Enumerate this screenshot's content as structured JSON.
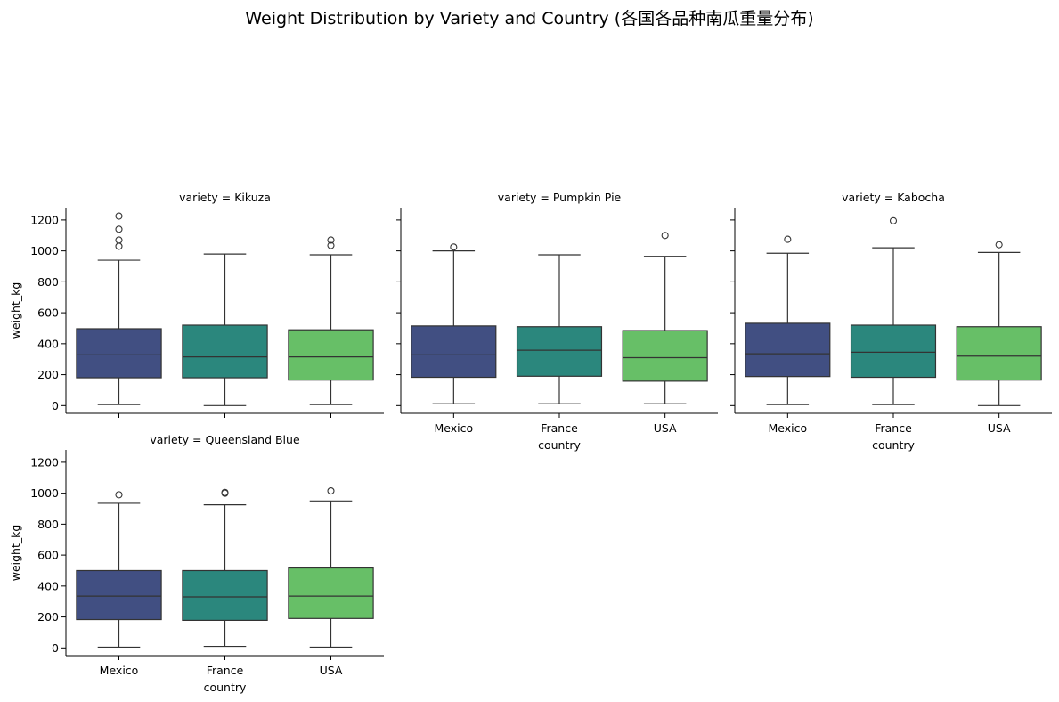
{
  "chart_data": {
    "type": "box",
    "title": "Weight Distribution by Variety and Country (各国各品种南瓜重量分布)",
    "xlabel": "country",
    "ylabel": "weight_kg",
    "ylim": [
      -50,
      1280
    ],
    "yticks": [
      0,
      200,
      400,
      600,
      800,
      1000,
      1200
    ],
    "categories": [
      "Mexico",
      "France",
      "USA"
    ],
    "colors": {
      "Mexico": "#414f82",
      "France": "#2b877d",
      "USA": "#67bf67"
    },
    "grid": false,
    "facets": [
      {
        "title": "variety = Kikuza",
        "boxes": [
          {
            "category": "Mexico",
            "whisker_low": 7,
            "q1": 180,
            "median": 328,
            "q3": 497,
            "whisker_high": 940,
            "outliers": [
              1030,
              1070,
              1140,
              1225
            ]
          },
          {
            "category": "France",
            "whisker_low": 0,
            "q1": 180,
            "median": 315,
            "q3": 520,
            "whisker_high": 980,
            "outliers": []
          },
          {
            "category": "USA",
            "whisker_low": 7,
            "q1": 165,
            "median": 315,
            "q3": 490,
            "whisker_high": 975,
            "outliers": [
              1035,
              1070
            ]
          }
        ]
      },
      {
        "title": "variety = Pumpkin Pie",
        "boxes": [
          {
            "category": "Mexico",
            "whisker_low": 12,
            "q1": 183,
            "median": 328,
            "q3": 515,
            "whisker_high": 1000,
            "outliers": [
              1025
            ]
          },
          {
            "category": "France",
            "whisker_low": 12,
            "q1": 190,
            "median": 358,
            "q3": 510,
            "whisker_high": 975,
            "outliers": []
          },
          {
            "category": "USA",
            "whisker_low": 12,
            "q1": 158,
            "median": 310,
            "q3": 485,
            "whisker_high": 965,
            "outliers": [
              1100
            ]
          }
        ]
      },
      {
        "title": "variety = Kabocha",
        "boxes": [
          {
            "category": "Mexico",
            "whisker_low": 7,
            "q1": 188,
            "median": 335,
            "q3": 532,
            "whisker_high": 985,
            "outliers": [
              1075
            ]
          },
          {
            "category": "France",
            "whisker_low": 7,
            "q1": 183,
            "median": 345,
            "q3": 520,
            "whisker_high": 1020,
            "outliers": [
              1195
            ]
          },
          {
            "category": "USA",
            "whisker_low": 0,
            "q1": 165,
            "median": 320,
            "q3": 510,
            "whisker_high": 990,
            "outliers": [
              1040
            ]
          }
        ]
      },
      {
        "title": "variety = Queensland Blue",
        "boxes": [
          {
            "category": "Mexico",
            "whisker_low": 5,
            "q1": 183,
            "median": 335,
            "q3": 500,
            "whisker_high": 935,
            "outliers": [
              990
            ]
          },
          {
            "category": "France",
            "whisker_low": 10,
            "q1": 178,
            "median": 330,
            "q3": 500,
            "whisker_high": 925,
            "outliers": [
              1000,
              1005
            ]
          },
          {
            "category": "USA",
            "whisker_low": 5,
            "q1": 190,
            "median": 335,
            "q3": 517,
            "whisker_high": 950,
            "outliers": [
              1015
            ]
          }
        ]
      }
    ]
  }
}
